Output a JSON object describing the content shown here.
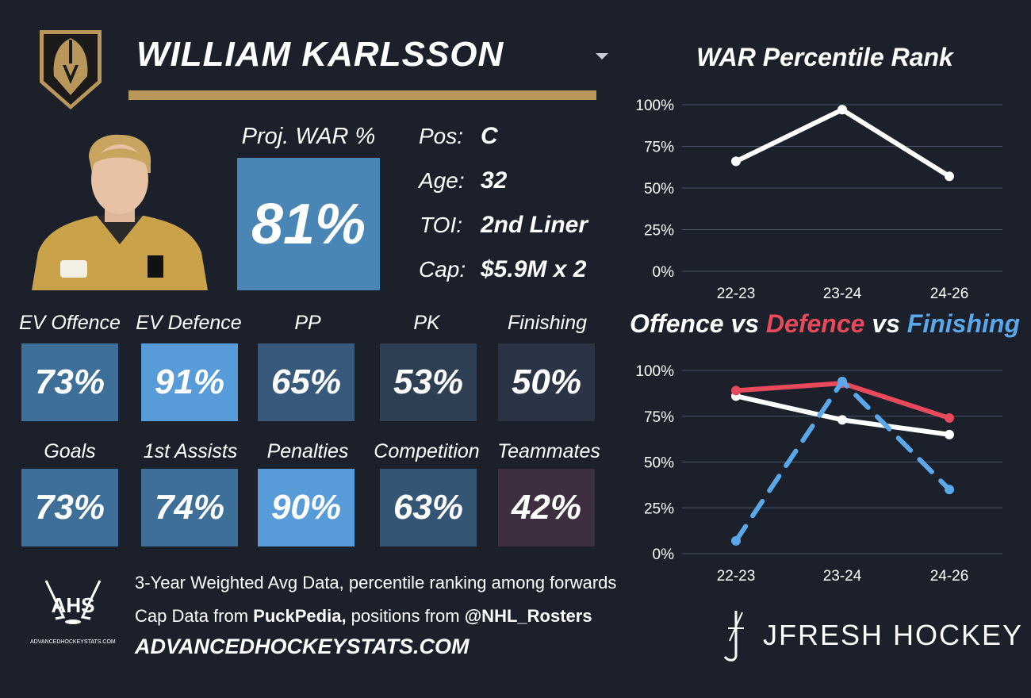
{
  "player": {
    "name": "WILLIAM KARLSSON"
  },
  "summary": {
    "proj_war_label": "Proj. WAR %",
    "proj_war_value": "81%",
    "proj_war_color": "#4a86b5"
  },
  "info": [
    {
      "label": "Pos:",
      "value": "C"
    },
    {
      "label": "Age:",
      "value": "32"
    },
    {
      "label": "TOI:",
      "value": "2nd Liner"
    },
    {
      "label": "Cap:",
      "value": "$5.9M x 2"
    }
  ],
  "stats": [
    {
      "label": "EV Offence",
      "value": "73%",
      "color": "#3e6f98"
    },
    {
      "label": "EV Defence",
      "value": "91%",
      "color": "#579bd9"
    },
    {
      "label": "PP",
      "value": "65%",
      "color": "#375a7c"
    },
    {
      "label": "PK",
      "value": "53%",
      "color": "#2e3e53"
    },
    {
      "label": "Finishing",
      "value": "50%",
      "color": "#2a3444"
    },
    {
      "label": "Goals",
      "value": "73%",
      "color": "#3e6f98"
    },
    {
      "label": "1st Assists",
      "value": "74%",
      "color": "#3e6f98"
    },
    {
      "label": "Penalties",
      "value": "90%",
      "color": "#579bd9"
    },
    {
      "label": "Competition",
      "value": "63%",
      "color": "#355575"
    },
    {
      "label": "Teammates",
      "value": "42%",
      "color": "#3e2f40"
    }
  ],
  "footer": {
    "line1": "3-Year Weighted Avg Data, percentile ranking among forwards",
    "line2_prefix": "Cap Data from ",
    "line2_bold1": "PuckPedia,",
    "line2_mid": " positions from ",
    "line2_bold2": "@NHL_Rosters",
    "website": "ADVANCEDHOCKEYSTATS.COM",
    "ahs_logo_text": "AHS",
    "ahs_logo_sub": "ADVANCEDHOCKEYSTATS.COM",
    "brand": "JFRESH HOCKEY"
  },
  "colors": {
    "background": "#1b202b",
    "gold": "#b9975b",
    "red": "#e8495b",
    "blue": "#5aa8ea",
    "white": "#ffffff"
  },
  "icons": {
    "team_logo": "golden-knights-helmet-icon",
    "dropdown": "caret-down-icon",
    "ahs": "hockey-sticks-icon",
    "jfresh": "jfresh-logo-icon"
  },
  "chart_data": [
    {
      "type": "line",
      "title": "WAR Percentile Rank",
      "categories": [
        "22-23",
        "23-24",
        "24-26"
      ],
      "series": [
        {
          "values": [
            66,
            97,
            57
          ],
          "color": "#ffffff"
        }
      ],
      "yticks": [
        "0%",
        "25%",
        "50%",
        "75%",
        "100%"
      ],
      "ylim": [
        0,
        100
      ],
      "grid": true
    },
    {
      "type": "line",
      "title_parts": [
        {
          "text": "Offence",
          "color": "#ffffff"
        },
        {
          "text": " vs ",
          "color": "#ffffff"
        },
        {
          "text": "Defence",
          "color": "#e8495b"
        },
        {
          "text": " vs ",
          "color": "#ffffff"
        },
        {
          "text": "Finishing",
          "color": "#5aa8ea"
        }
      ],
      "categories": [
        "22-23",
        "23-24",
        "24-26"
      ],
      "series": [
        {
          "name": "Offence",
          "values": [
            86,
            73,
            65
          ],
          "color": "#ffffff",
          "dashed": false
        },
        {
          "name": "Defence",
          "values": [
            89,
            93,
            74
          ],
          "color": "#e8495b",
          "dashed": false
        },
        {
          "name": "Finishing",
          "values": [
            7,
            94,
            35
          ],
          "color": "#5aa8ea",
          "dashed": true
        }
      ],
      "yticks": [
        "0%",
        "25%",
        "50%",
        "75%",
        "100%"
      ],
      "ylim": [
        0,
        100
      ],
      "grid": true
    }
  ]
}
